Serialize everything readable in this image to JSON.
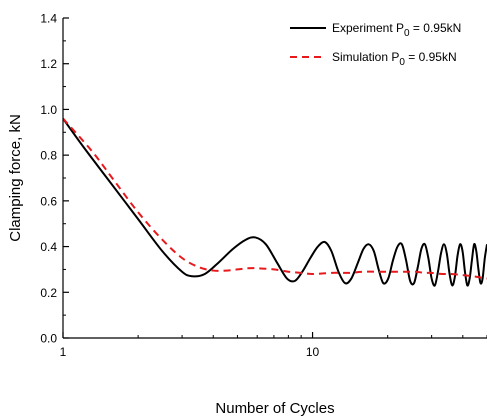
{
  "chart_data": {
    "type": "line",
    "xlabel": "Number of Cycles",
    "ylabel": "Clamping force, kN",
    "x_scale": "log",
    "xlim": [
      1,
      50
    ],
    "ylim": [
      0.0,
      1.4
    ],
    "x_tick_labels": [
      {
        "value": 1,
        "label": "1"
      },
      {
        "value": 10,
        "label": "10"
      }
    ],
    "y_ticks": [
      0.0,
      0.2,
      0.4,
      0.6,
      0.8,
      1.0,
      1.2,
      1.4
    ],
    "y_tick_labels": [
      "0.0",
      "0.2",
      "0.4",
      "0.6",
      "0.8",
      "1.0",
      "1.2",
      "1.4"
    ],
    "grid": false,
    "legend_position": "top-right",
    "series": [
      {
        "name": "Experiment",
        "legend_label": "Experiment P",
        "legend_sub": "0",
        "legend_suffix": " = 0.95kN",
        "color": "#000000",
        "dash": "solid",
        "x": [
          1,
          1.2,
          1.5,
          2.0,
          2.5,
          3.0,
          3.3,
          3.7,
          4.2,
          4.8,
          5.4,
          5.9,
          6.5,
          7.2,
          7.9,
          8.5,
          9.1,
          9.8,
          10.5,
          11.2,
          11.9,
          12.7,
          13.5,
          14.3,
          15.2,
          16.0,
          16.8,
          17.6,
          18.4,
          19.2,
          20.1,
          21.0,
          21.9,
          22.8,
          23.7,
          24.6,
          25.5,
          26.4,
          27.3,
          28.2,
          29.1,
          30.0,
          30.9,
          31.8,
          32.7,
          33.6,
          34.5,
          35.4,
          36.3,
          37.2,
          38.1,
          39.0,
          39.9,
          40.8,
          41.7,
          42.6,
          43.5,
          44.4,
          45.3,
          46.2,
          47.1,
          48.0,
          49.0,
          50.0
        ],
        "y": [
          0.96,
          0.84,
          0.7,
          0.52,
          0.38,
          0.29,
          0.27,
          0.28,
          0.33,
          0.39,
          0.43,
          0.44,
          0.41,
          0.33,
          0.26,
          0.25,
          0.29,
          0.35,
          0.4,
          0.42,
          0.38,
          0.29,
          0.24,
          0.26,
          0.33,
          0.39,
          0.41,
          0.38,
          0.3,
          0.24,
          0.26,
          0.34,
          0.4,
          0.41,
          0.34,
          0.25,
          0.24,
          0.31,
          0.39,
          0.41,
          0.35,
          0.26,
          0.23,
          0.29,
          0.37,
          0.41,
          0.37,
          0.28,
          0.23,
          0.27,
          0.36,
          0.41,
          0.38,
          0.29,
          0.23,
          0.26,
          0.34,
          0.41,
          0.38,
          0.3,
          0.24,
          0.26,
          0.35,
          0.41
        ]
      },
      {
        "name": "Simulation",
        "legend_label": "Simulation P",
        "legend_sub": "0",
        "legend_suffix": " = 0.95kN",
        "color": "#e8191c",
        "dash": "dashed",
        "x": [
          1,
          1.3,
          1.6,
          2.0,
          2.5,
          3.0,
          3.5,
          4.0,
          4.5,
          5.0,
          5.5,
          6.0,
          7.0,
          8.0,
          9.0,
          10.0,
          12.0,
          14.0,
          16.0,
          18.0,
          20.0,
          22.0,
          24.0,
          26.0,
          28.0,
          30.0,
          33.0,
          36.0,
          40.0,
          44.0,
          47.0,
          50.0
        ],
        "y": [
          0.96,
          0.82,
          0.69,
          0.55,
          0.43,
          0.35,
          0.31,
          0.295,
          0.295,
          0.3,
          0.305,
          0.305,
          0.3,
          0.29,
          0.285,
          0.28,
          0.285,
          0.285,
          0.29,
          0.29,
          0.29,
          0.29,
          0.29,
          0.29,
          0.285,
          0.285,
          0.28,
          0.28,
          0.275,
          0.27,
          0.265,
          0.26
        ]
      }
    ]
  }
}
